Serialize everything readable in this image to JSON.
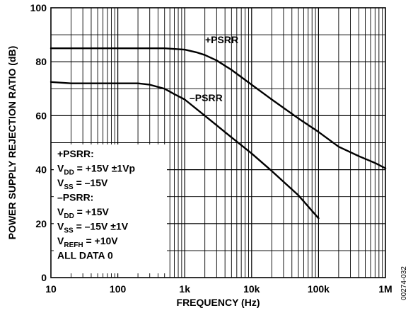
{
  "chart_data": {
    "type": "line",
    "title": "",
    "xlabel": "FREQUENCY (Hz)",
    "ylabel": "POWER SUPPLY REJECTION RATIO (dB)",
    "x_scale": "log",
    "xlim": [
      10,
      1000000
    ],
    "ylim": [
      0,
      100
    ],
    "grid": true,
    "x_ticks": [
      {
        "value": 10,
        "label": "10"
      },
      {
        "value": 100,
        "label": "100"
      },
      {
        "value": 1000,
        "label": "1k"
      },
      {
        "value": 10000,
        "label": "10k"
      },
      {
        "value": 100000,
        "label": "100k"
      },
      {
        "value": 1000000,
        "label": "1M"
      }
    ],
    "y_ticks": [
      {
        "value": 0,
        "label": "0"
      },
      {
        "value": 20,
        "label": "20"
      },
      {
        "value": 40,
        "label": "40"
      },
      {
        "value": 60,
        "label": "60"
      },
      {
        "value": 80,
        "label": "80"
      },
      {
        "value": 100,
        "label": "100"
      }
    ],
    "series": [
      {
        "name": "+PSRR",
        "x": [
          10,
          20,
          50,
          100,
          200,
          500,
          1000,
          1500,
          2000,
          3000,
          5000,
          10000,
          20000,
          50000,
          100000,
          200000,
          400000,
          700000,
          1000000
        ],
        "y": [
          85,
          85,
          85,
          85,
          85,
          85,
          84.5,
          83.5,
          82.5,
          80.5,
          77,
          71.5,
          66,
          59,
          54,
          48.5,
          45,
          42.5,
          40.5
        ]
      },
      {
        "name": "−PSRR",
        "x": [
          10,
          20,
          50,
          100,
          200,
          300,
          500,
          700,
          1000,
          2000,
          5000,
          10000,
          20000,
          50000,
          100000
        ],
        "y": [
          72.5,
          72,
          72,
          72,
          72,
          71.5,
          70,
          68,
          66,
          60,
          52,
          46,
          39.5,
          30.5,
          22
        ]
      }
    ],
    "annotations": {
      "plus_psrr_label": "+PSRR",
      "minus_psrr_label": "–PSRR",
      "conditions": [
        {
          "base": "+PSRR:",
          "sub": "",
          "rest": ""
        },
        {
          "base": "V",
          "sub": "DD",
          "rest": " = +15V ±1Vp"
        },
        {
          "base": "V",
          "sub": "SS",
          "rest": " = –15V"
        },
        {
          "base": "–PSRR:",
          "sub": "",
          "rest": ""
        },
        {
          "base": "V",
          "sub": "DD",
          "rest": " = +15V"
        },
        {
          "base": "V",
          "sub": "SS",
          "rest": " = –15V ±1V"
        },
        {
          "base": "V",
          "sub": "REFH",
          "rest": " = +10V"
        },
        {
          "base": "ALL DATA 0",
          "sub": "",
          "rest": ""
        }
      ]
    },
    "figure_id": "00274-032"
  }
}
